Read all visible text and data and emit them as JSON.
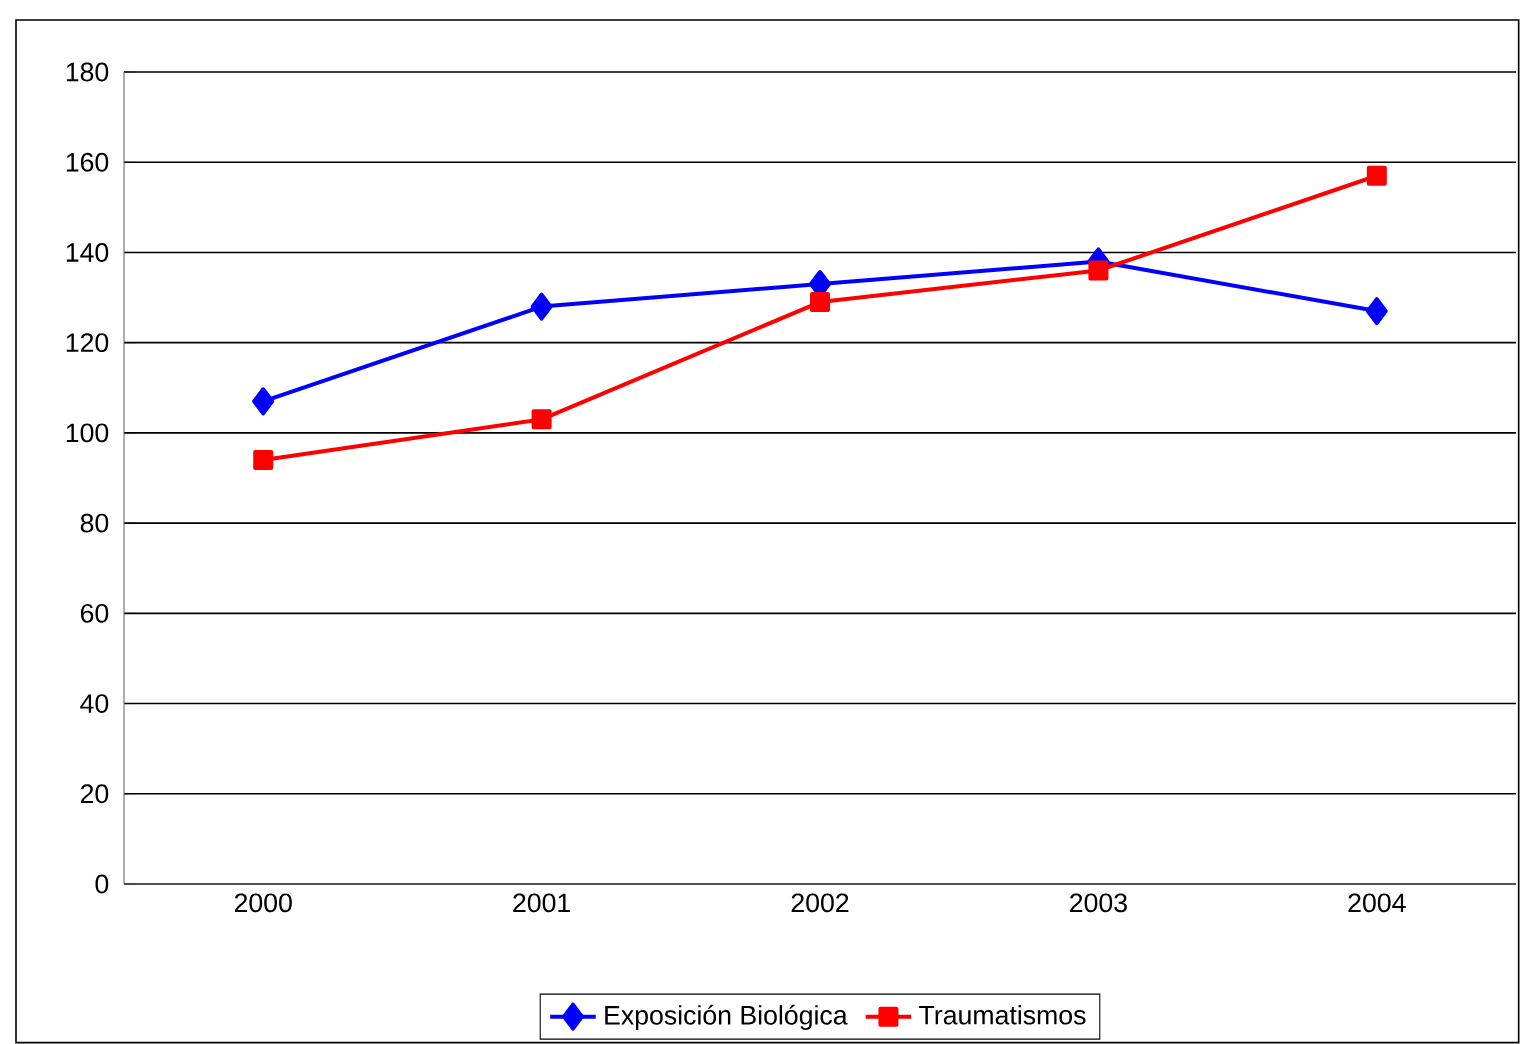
{
  "chart_data": {
    "type": "line",
    "categories": [
      "2000",
      "2001",
      "2002",
      "2003",
      "2004"
    ],
    "series": [
      {
        "name": "Exposición Biológica",
        "color": "#0000ff",
        "marker": "diamond",
        "values": [
          107,
          128,
          133,
          138,
          127
        ]
      },
      {
        "name": "Traumatismos",
        "color": "#ff0000",
        "marker": "square",
        "values": [
          94,
          103,
          129,
          136,
          157
        ]
      }
    ],
    "ylim": [
      0,
      180
    ],
    "yticks": [
      0,
      20,
      40,
      60,
      80,
      100,
      120,
      140,
      160,
      180
    ],
    "grid": "y",
    "legend": "bottom",
    "line_style": "solid"
  }
}
